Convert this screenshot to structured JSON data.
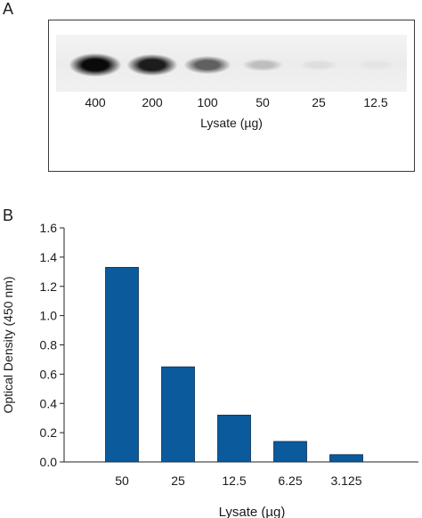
{
  "panels": {
    "a_label": "A",
    "b_label": "B"
  },
  "blot": {
    "lanes": [
      {
        "label": "400",
        "intensity": 1.0
      },
      {
        "label": "200",
        "intensity": 0.92
      },
      {
        "label": "100",
        "intensity": 0.62
      },
      {
        "label": "50",
        "intensity": 0.2
      },
      {
        "label": "25",
        "intensity": 0.06
      },
      {
        "label": "12.5",
        "intensity": 0.03
      }
    ],
    "xlabel": "Lysate (µg)"
  },
  "chart_data": {
    "type": "bar",
    "categories": [
      "50",
      "25",
      "12.5",
      "6.25",
      "3.125"
    ],
    "values": [
      1.33,
      0.65,
      0.32,
      0.14,
      0.05
    ],
    "yticks": [
      "0.0",
      "0.2",
      "0.4",
      "0.6",
      "0.8",
      "1.0",
      "1.2",
      "1.4",
      "1.6"
    ],
    "ylim": [
      0,
      1.6
    ],
    "xlabel": "Lysate (µg)",
    "ylabel": "Optical Density (450 nm)",
    "bar_color": "#0a5a9c",
    "grid": false
  }
}
